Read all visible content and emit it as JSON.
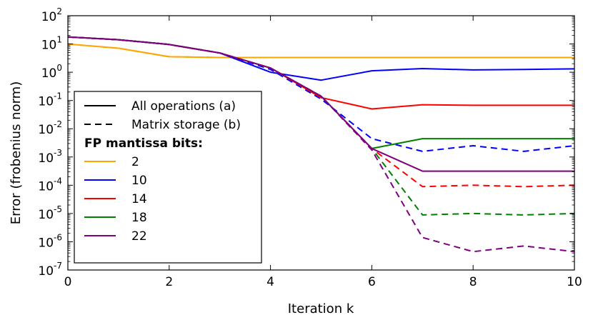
{
  "chart_data": {
    "type": "line",
    "xlabel": "Iteration k",
    "ylabel": "Error (frobenius norm)",
    "xlim": [
      0,
      10
    ],
    "ylim_log10": [
      -7,
      2
    ],
    "yscale": "log",
    "xticks": [
      0,
      2,
      4,
      6,
      8,
      10
    ],
    "xtick_labels": [
      "0",
      "2",
      "4",
      "6",
      "8",
      "10"
    ],
    "yticks_log10": [
      2,
      1,
      0,
      -1,
      -2,
      -3,
      -4,
      -5,
      -6,
      -7
    ],
    "ytick_labels": [
      {
        "base": "10",
        "exp": "2"
      },
      {
        "base": "10",
        "exp": "1"
      },
      {
        "base": "10",
        "exp": "0"
      },
      {
        "base": "10",
        "exp": "-1"
      },
      {
        "base": "10",
        "exp": "-2"
      },
      {
        "base": "10",
        "exp": "-3"
      },
      {
        "base": "10",
        "exp": "-4"
      },
      {
        "base": "10",
        "exp": "-5"
      },
      {
        "base": "10",
        "exp": "-6"
      },
      {
        "base": "10",
        "exp": "-7"
      }
    ],
    "legend": {
      "placement": "lower-left",
      "style_entries": [
        {
          "label": "All operations (a)",
          "dash": "solid"
        },
        {
          "label": "Matrix storage (b)",
          "dash": "dashed"
        }
      ],
      "heading": "FP mantissa bits:",
      "color_entries": [
        {
          "label": "2",
          "color": "#ffa500"
        },
        {
          "label": "10",
          "color": "#0000ff"
        },
        {
          "label": "14",
          "color": "#ff0000"
        },
        {
          "label": "18",
          "color": "#008000"
        },
        {
          "label": "22",
          "color": "#800080"
        }
      ]
    },
    "series": [
      {
        "name": "2 bits (a)",
        "bits": "2",
        "color": "#ffa500",
        "dash": "solid",
        "x": [
          0,
          1,
          2,
          3,
          4,
          5,
          6,
          7,
          8,
          9,
          10
        ],
        "y_log10": [
          1.0,
          0.85,
          0.55,
          0.52,
          0.52,
          0.52,
          0.52,
          0.52,
          0.52,
          0.52,
          0.52
        ]
      },
      {
        "name": "2 bits (b)",
        "bits": "2",
        "color": "#ffa500",
        "dash": "dashed",
        "x": [
          0,
          1,
          2,
          3,
          4,
          5,
          6,
          7,
          8,
          9,
          10
        ],
        "y_log10": [
          1.0,
          0.85,
          0.55,
          0.52,
          0.52,
          0.52,
          0.52,
          0.52,
          0.52,
          0.52,
          0.52
        ]
      },
      {
        "name": "10 bits (a)",
        "bits": "10",
        "color": "#0000ff",
        "dash": "solid",
        "x": [
          0,
          1,
          2,
          3,
          4,
          5,
          6,
          7,
          8,
          9,
          10
        ],
        "y_log10": [
          1.25,
          1.15,
          0.98,
          0.68,
          0.0,
          -0.28,
          0.05,
          0.13,
          0.08,
          0.1,
          0.12
        ]
      },
      {
        "name": "10 bits (b)",
        "bits": "10",
        "color": "#0000ff",
        "dash": "dashed",
        "x": [
          0,
          1,
          2,
          3,
          4,
          5,
          6,
          7,
          8,
          9,
          10
        ],
        "y_log10": [
          1.25,
          1.15,
          0.98,
          0.68,
          0.1,
          -0.95,
          -2.35,
          -2.8,
          -2.6,
          -2.8,
          -2.6
        ]
      },
      {
        "name": "14 bits (a)",
        "bits": "14",
        "color": "#ff0000",
        "dash": "solid",
        "x": [
          0,
          1,
          2,
          3,
          4,
          5,
          6,
          7,
          8,
          9,
          10
        ],
        "y_log10": [
          1.25,
          1.15,
          0.98,
          0.68,
          0.15,
          -0.9,
          -1.3,
          -1.15,
          -1.17,
          -1.17,
          -1.17
        ]
      },
      {
        "name": "14 bits (b)",
        "bits": "14",
        "color": "#ff0000",
        "dash": "dashed",
        "x": [
          0,
          1,
          2,
          3,
          4,
          5,
          6,
          7,
          8,
          9,
          10
        ],
        "y_log10": [
          1.25,
          1.15,
          0.98,
          0.68,
          0.15,
          -0.85,
          -2.7,
          -4.05,
          -4.0,
          -4.05,
          -4.0
        ]
      },
      {
        "name": "18 bits (a)",
        "bits": "18",
        "color": "#008000",
        "dash": "solid",
        "x": [
          0,
          1,
          2,
          3,
          4,
          5,
          6,
          7,
          8,
          9,
          10
        ],
        "y_log10": [
          1.25,
          1.15,
          0.98,
          0.68,
          0.15,
          -0.85,
          -2.7,
          -2.35,
          -2.35,
          -2.35,
          -2.35
        ]
      },
      {
        "name": "18 bits (b)",
        "bits": "18",
        "color": "#008000",
        "dash": "dashed",
        "x": [
          0,
          1,
          2,
          3,
          4,
          5,
          6,
          7,
          8,
          9,
          10
        ],
        "y_log10": [
          1.25,
          1.15,
          0.98,
          0.68,
          0.15,
          -0.85,
          -2.7,
          -5.05,
          -5.0,
          -5.05,
          -5.0
        ]
      },
      {
        "name": "22 bits (a)",
        "bits": "22",
        "color": "#800080",
        "dash": "solid",
        "x": [
          0,
          1,
          2,
          3,
          4,
          5,
          6,
          7,
          8,
          9,
          10
        ],
        "y_log10": [
          1.25,
          1.15,
          0.98,
          0.68,
          0.15,
          -0.85,
          -2.7,
          -3.5,
          -3.5,
          -3.5,
          -3.5
        ]
      },
      {
        "name": "22 bits (b)",
        "bits": "22",
        "color": "#800080",
        "dash": "dashed",
        "x": [
          0,
          1,
          2,
          3,
          4,
          5,
          6,
          7,
          8,
          9,
          10
        ],
        "y_log10": [
          1.25,
          1.15,
          0.98,
          0.68,
          0.15,
          -0.85,
          -2.75,
          -5.85,
          -6.35,
          -6.15,
          -6.35
        ]
      }
    ]
  }
}
